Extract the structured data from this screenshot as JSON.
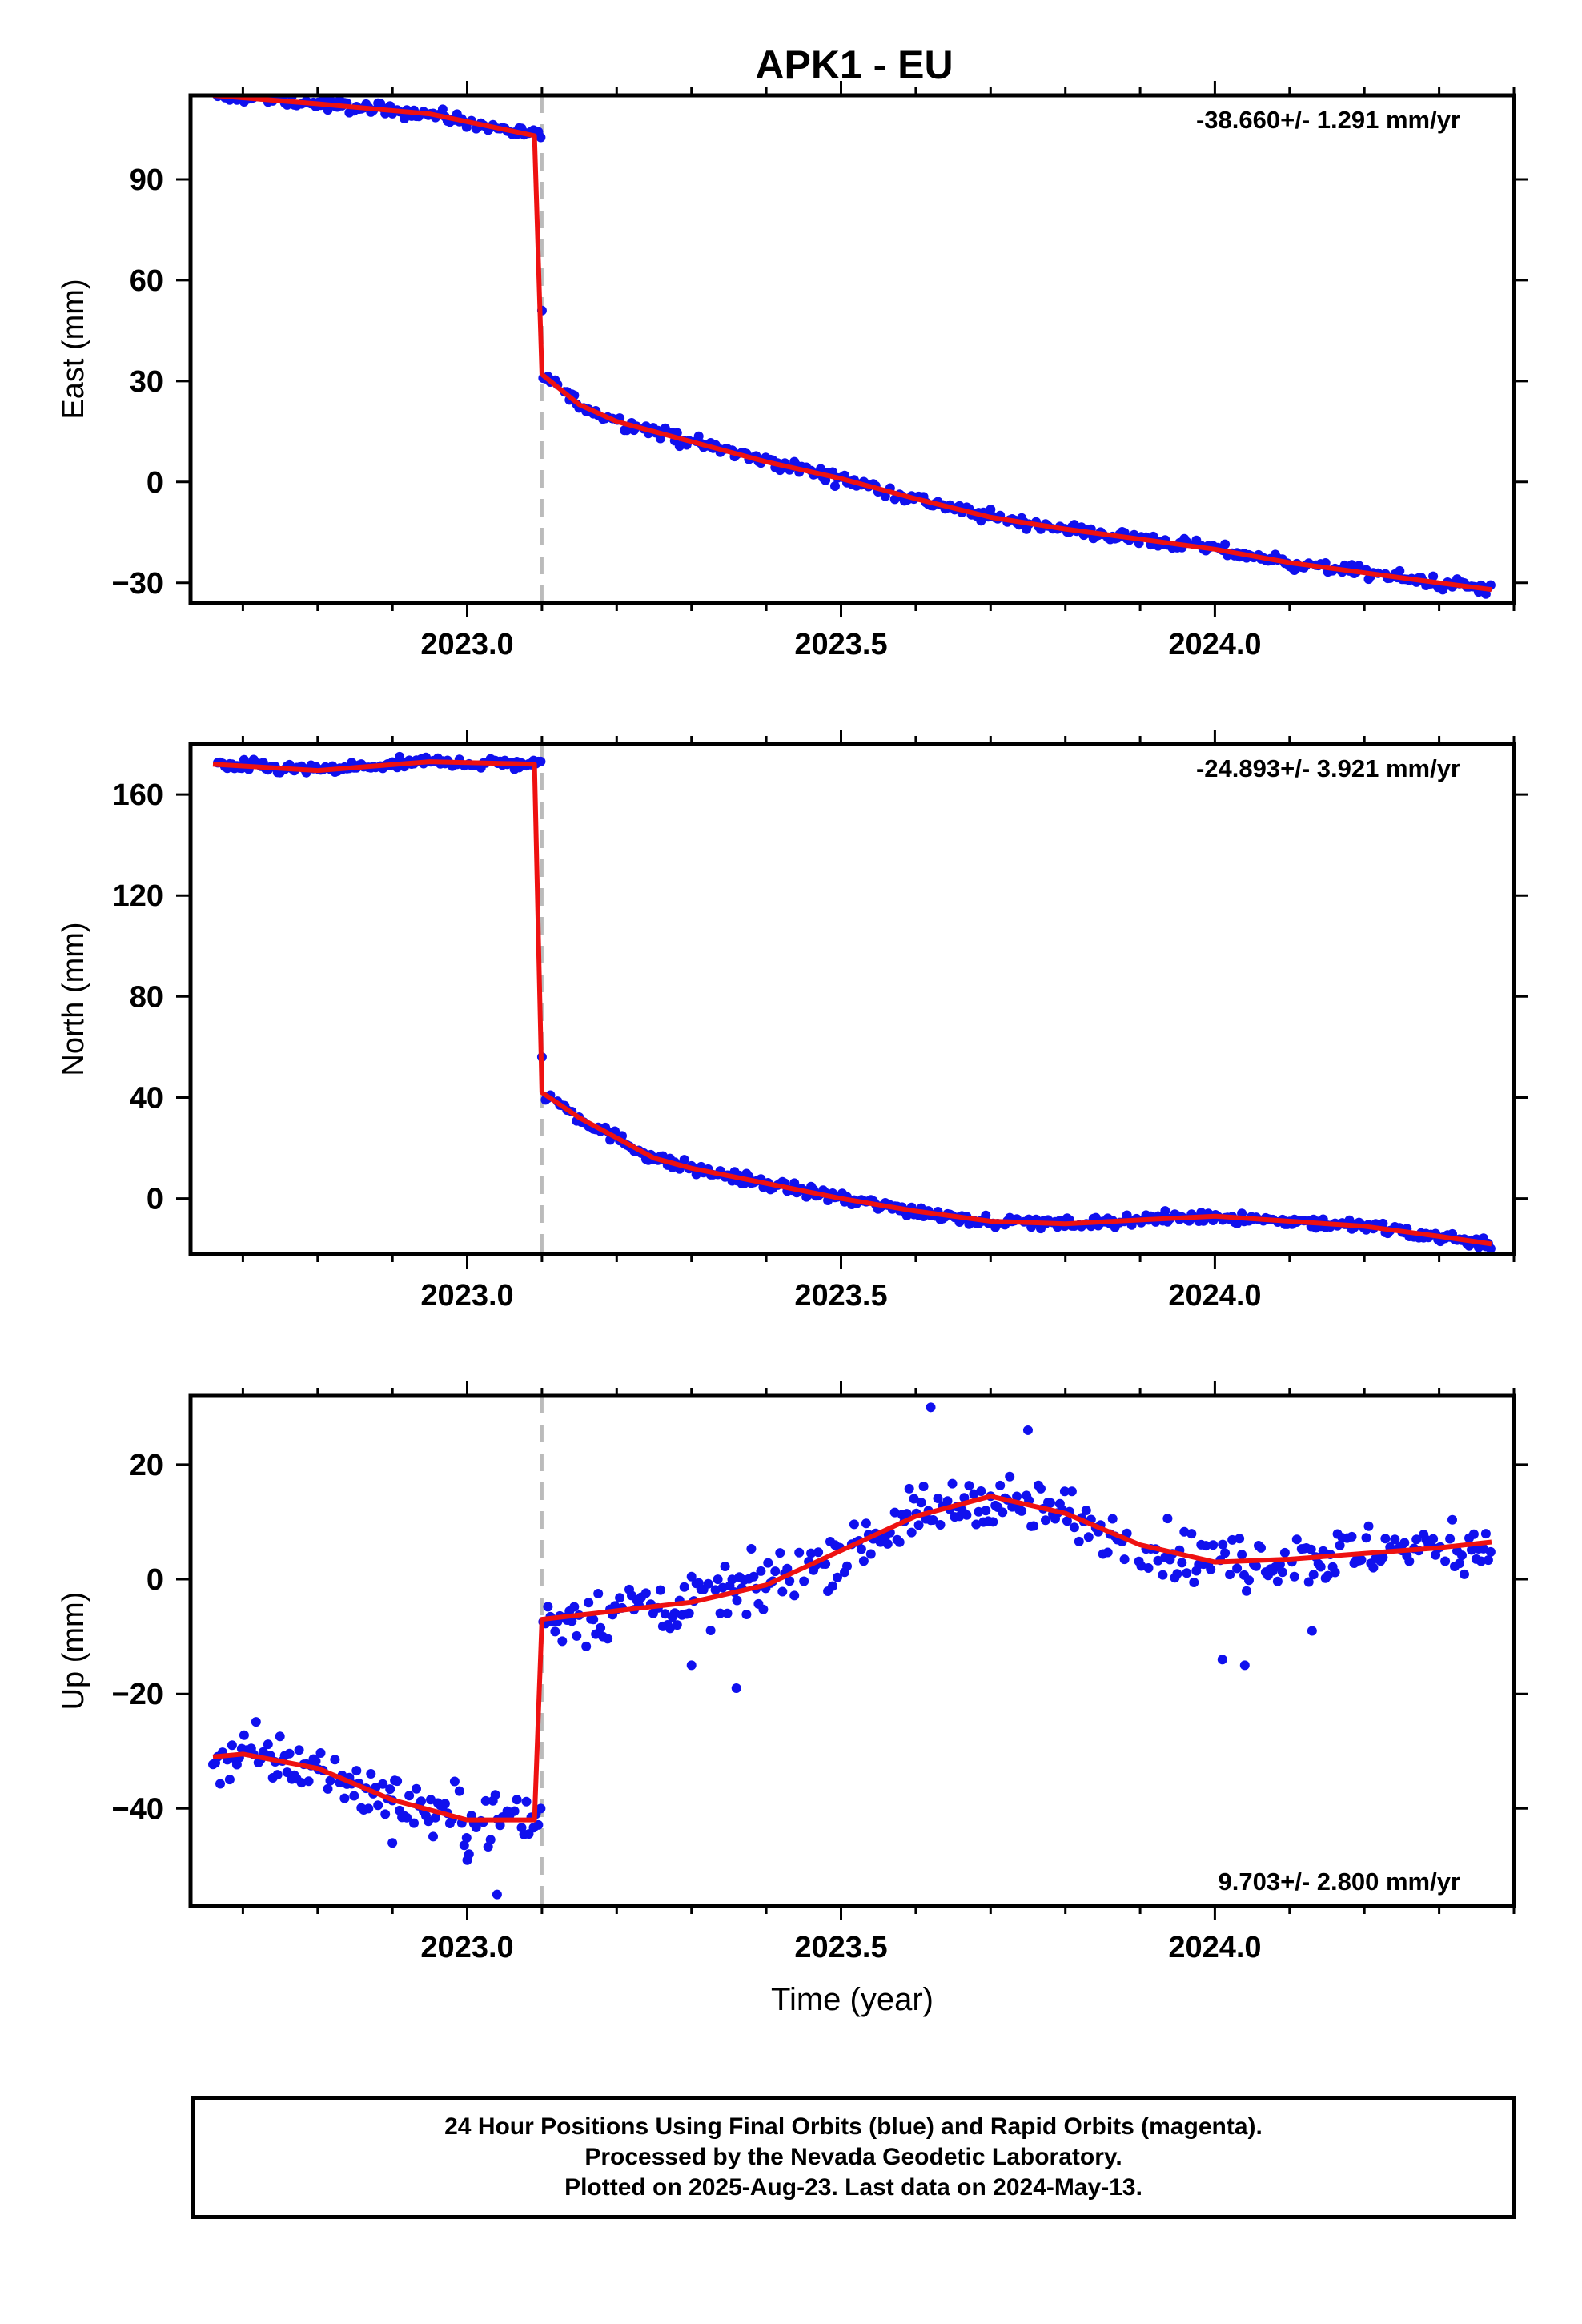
{
  "title": "APK1 - EU",
  "colors": {
    "points": "#1010ee",
    "fit": "#ee1111",
    "event_line": "#bbbbbb",
    "frame": "#000000"
  },
  "chart_data": [
    {
      "type": "scatter",
      "component": "East",
      "ylabel": "East (mm)",
      "xlabel": "",
      "xlim": [
        2022.63,
        2024.4
      ],
      "ylim": [
        -36,
        115
      ],
      "xticks": [
        2023.0,
        2023.5,
        2024.0
      ],
      "xtick_labels": [
        "2023.0",
        "2023.5",
        "2024.0"
      ],
      "yticks": [
        -30,
        0,
        30,
        60,
        90
      ],
      "ytick_labels": [
        "−30",
        "0",
        "30",
        "60",
        "90"
      ],
      "rate_text": "-38.660+/- 1.291 mm/yr",
      "rate_position": "top-right",
      "event_x": 2023.1,
      "fit_line": {
        "pre": [
          [
            2022.66,
            115
          ],
          [
            2022.8,
            112.5
          ],
          [
            2022.95,
            109.5
          ],
          [
            2023.09,
            103
          ]
        ],
        "post": [
          [
            2023.1,
            32
          ],
          [
            2023.15,
            23
          ],
          [
            2023.2,
            18
          ],
          [
            2023.3,
            12
          ],
          [
            2023.4,
            6
          ],
          [
            2023.5,
            1
          ],
          [
            2023.6,
            -5
          ],
          [
            2023.7,
            -10.5
          ],
          [
            2023.8,
            -14
          ],
          [
            2023.9,
            -17
          ],
          [
            2024.0,
            -20
          ],
          [
            2024.1,
            -24
          ],
          [
            2024.2,
            -27
          ],
          [
            2024.3,
            -30
          ],
          [
            2024.37,
            -32
          ]
        ]
      },
      "outliers": [
        [
          2023.1,
          51
        ]
      ],
      "noise": 1.5
    },
    {
      "type": "scatter",
      "component": "North",
      "ylabel": "North (mm)",
      "xlabel": "",
      "xlim": [
        2022.63,
        2024.4
      ],
      "ylim": [
        -22,
        180
      ],
      "xticks": [
        2023.0,
        2023.5,
        2024.0
      ],
      "xtick_labels": [
        "2023.0",
        "2023.5",
        "2024.0"
      ],
      "yticks": [
        0,
        40,
        80,
        120,
        160
      ],
      "ytick_labels": [
        "0",
        "40",
        "80",
        "120",
        "160"
      ],
      "rate_text": "-24.893+/- 3.921 mm/yr",
      "rate_position": "top-right",
      "event_x": 2023.1,
      "fit_line": {
        "pre": [
          [
            2022.66,
            172
          ],
          [
            2022.8,
            169.5
          ],
          [
            2022.95,
            173
          ],
          [
            2023.09,
            172
          ]
        ],
        "post": [
          [
            2023.1,
            42
          ],
          [
            2023.15,
            32
          ],
          [
            2023.2,
            24
          ],
          [
            2023.25,
            16
          ],
          [
            2023.3,
            12
          ],
          [
            2023.4,
            6
          ],
          [
            2023.5,
            0
          ],
          [
            2023.6,
            -5
          ],
          [
            2023.7,
            -9
          ],
          [
            2023.8,
            -10
          ],
          [
            2023.9,
            -8.5
          ],
          [
            2024.0,
            -7
          ],
          [
            2024.1,
            -9
          ],
          [
            2024.2,
            -11
          ],
          [
            2024.3,
            -15
          ],
          [
            2024.37,
            -18
          ]
        ]
      },
      "outliers": [
        [
          2023.1,
          56
        ]
      ],
      "noise": 2
    },
    {
      "type": "scatter",
      "component": "Up",
      "ylabel": "Up (mm)",
      "xlabel": "Time (year)",
      "xlim": [
        2022.63,
        2024.4
      ],
      "ylim": [
        -57,
        32
      ],
      "xticks": [
        2023.0,
        2023.5,
        2024.0
      ],
      "xtick_labels": [
        "2023.0",
        "2023.5",
        "2024.0"
      ],
      "yticks": [
        -40,
        -20,
        0,
        20
      ],
      "ytick_labels": [
        "−40",
        "−20",
        "0",
        "20"
      ],
      "rate_text": "9.703+/- 2.800 mm/yr",
      "rate_position": "bottom-right",
      "event_x": 2023.1,
      "fit_line": {
        "pre": [
          [
            2022.66,
            -31
          ],
          [
            2022.7,
            -30.5
          ],
          [
            2022.8,
            -33
          ],
          [
            2022.9,
            -38.5
          ],
          [
            2023.0,
            -42
          ],
          [
            2023.09,
            -42
          ]
        ],
        "post": [
          [
            2023.1,
            -7
          ],
          [
            2023.2,
            -5.5
          ],
          [
            2023.3,
            -4
          ],
          [
            2023.4,
            -1
          ],
          [
            2023.5,
            5
          ],
          [
            2023.6,
            11
          ],
          [
            2023.7,
            14.5
          ],
          [
            2023.8,
            11.5
          ],
          [
            2023.9,
            6
          ],
          [
            2024.0,
            3
          ],
          [
            2024.1,
            3.5
          ],
          [
            2024.2,
            4.5
          ],
          [
            2024.3,
            5.5
          ],
          [
            2024.37,
            6.5
          ]
        ]
      },
      "outliers": [
        [
          2022.9,
          -46
        ],
        [
          2023.0,
          -49
        ],
        [
          2023.04,
          -55
        ],
        [
          2023.3,
          -15
        ],
        [
          2023.36,
          -19
        ],
        [
          2023.62,
          30
        ],
        [
          2023.75,
          26
        ],
        [
          2024.01,
          -14
        ],
        [
          2024.04,
          -15
        ],
        [
          2024.13,
          -9
        ]
      ],
      "noise": 4
    }
  ],
  "footer": {
    "line1": "24 Hour Positions Using Final Orbits (blue) and Rapid Orbits (magenta).",
    "line2": "Processed by the Nevada Geodetic Laboratory.",
    "line3": "Plotted on 2025-Aug-23. Last data on 2024-May-13."
  }
}
